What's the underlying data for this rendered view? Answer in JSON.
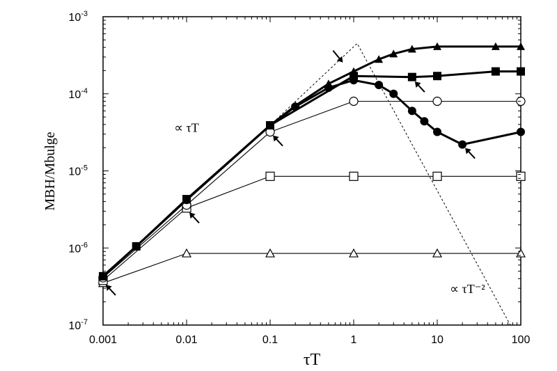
{
  "chart_data": {
    "type": "scatter",
    "xlabel": "τT",
    "ylabel": "MBH/Mbulge",
    "x_scale": "log",
    "y_scale": "log",
    "xlim": [
      0.001,
      100
    ],
    "ylim": [
      1e-07,
      0.001
    ],
    "x_ticks": [
      {
        "value": 0.001,
        "label": "0.001"
      },
      {
        "value": 0.01,
        "label": "0.01"
      },
      {
        "value": 0.1,
        "label": "0.1"
      },
      {
        "value": 1,
        "label": "1"
      },
      {
        "value": 10,
        "label": "10"
      },
      {
        "value": 100,
        "label": "100"
      }
    ],
    "y_ticks": [
      {
        "value": 1e-07,
        "base": "10",
        "exp": "-7"
      },
      {
        "value": 1e-06,
        "base": "10",
        "exp": "-6"
      },
      {
        "value": 1e-05,
        "base": "10",
        "exp": "-5"
      },
      {
        "value": 0.0001,
        "base": "10",
        "exp": "-4"
      },
      {
        "value": 0.001,
        "base": "10",
        "exp": "-3"
      }
    ],
    "grid": false,
    "series": [
      {
        "marker": "filled-triangle",
        "line": "thick",
        "points": [
          [
            0.001,
            4.3e-07
          ],
          [
            0.0025,
            1.05e-06
          ],
          [
            0.01,
            4.2e-06
          ],
          [
            0.1,
            3.9e-05
          ],
          [
            0.2,
            7e-05
          ],
          [
            0.5,
            0.000135
          ],
          [
            1,
            0.000195
          ],
          [
            2,
            0.00028
          ],
          [
            3,
            0.00033
          ],
          [
            5,
            0.00038
          ],
          [
            10,
            0.00041
          ],
          [
            50,
            0.00041
          ],
          [
            100,
            0.00041
          ]
        ]
      },
      {
        "marker": "filled-square",
        "line": "thick",
        "points": [
          [
            0.001,
            4.3e-07
          ],
          [
            0.0025,
            1.05e-06
          ],
          [
            0.01,
            4.3e-06
          ],
          [
            0.1,
            3.9e-05
          ],
          [
            1,
            0.00017
          ],
          [
            5,
            0.000165
          ],
          [
            10,
            0.00017
          ],
          [
            50,
            0.000195
          ],
          [
            100,
            0.000195
          ]
        ]
      },
      {
        "marker": "filled-circle",
        "line": "thick",
        "points": [
          [
            0.001,
            4.3e-07
          ],
          [
            0.0025,
            1.05e-06
          ],
          [
            0.01,
            4.2e-06
          ],
          [
            0.1,
            3.9e-05
          ],
          [
            0.2,
            6.8e-05
          ],
          [
            0.5,
            0.00012
          ],
          [
            1,
            0.00015
          ],
          [
            2,
            0.00013
          ],
          [
            3,
            0.0001
          ],
          [
            5,
            6e-05
          ],
          [
            7,
            4.4e-05
          ],
          [
            10,
            3.2e-05
          ],
          [
            20,
            2.2e-05
          ],
          [
            100,
            3.2e-05
          ]
        ]
      },
      {
        "marker": "open-circle",
        "line": "thin",
        "points": [
          [
            0.001,
            4.1e-07
          ],
          [
            0.01,
            3.6e-06
          ],
          [
            0.1,
            3.2e-05
          ],
          [
            1,
            8e-05
          ],
          [
            10,
            8e-05
          ],
          [
            100,
            8e-05
          ]
        ]
      },
      {
        "marker": "open-square",
        "line": "thin",
        "points": [
          [
            0.001,
            3.8e-07
          ],
          [
            0.01,
            3.3e-06
          ],
          [
            0.1,
            8.5e-06
          ],
          [
            1,
            8.5e-06
          ],
          [
            10,
            8.5e-06
          ],
          [
            100,
            8.5e-06
          ]
        ]
      },
      {
        "marker": "open-triangle",
        "line": "thin",
        "points": [
          [
            0.001,
            3.5e-07
          ],
          [
            0.01,
            8.5e-07
          ],
          [
            0.1,
            8.5e-07
          ],
          [
            1,
            8.5e-07
          ],
          [
            10,
            8.5e-07
          ],
          [
            100,
            8.5e-07
          ]
        ]
      },
      {
        "marker": "none",
        "line": "dashed",
        "points": [
          [
            0.1,
            3.9e-05
          ],
          [
            1.1,
            0.00045
          ],
          [
            75,
            1e-07
          ]
        ]
      }
    ],
    "annotations": [
      {
        "label": "∝ τT",
        "at": [
          0.01,
          3.2e-05
        ]
      },
      {
        "label": "∝ τT⁻²",
        "at": [
          23,
          2.6e-07
        ]
      }
    ],
    "arrows": [
      {
        "tip": [
          0.001,
          3.7e-07
        ],
        "dir": "up-left"
      },
      {
        "tip": [
          0.01,
          3.2e-06
        ],
        "dir": "up-left"
      },
      {
        "tip": [
          0.1,
          3.2e-05
        ],
        "dir": "up-left"
      },
      {
        "tip": [
          0.8,
          0.00023
        ],
        "dir": "down-right-from-above"
      },
      {
        "tip": [
          5,
          0.00016
        ],
        "dir": "up-left"
      },
      {
        "tip": [
          20,
          2.2e-05
        ],
        "dir": "up-left"
      }
    ]
  }
}
